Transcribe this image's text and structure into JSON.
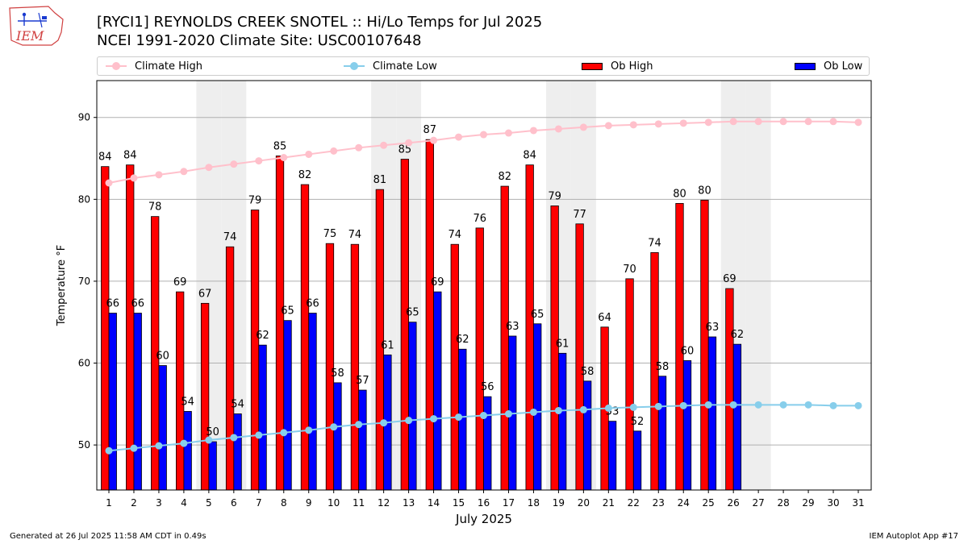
{
  "header": {
    "logo_text": "IEM",
    "title_line1": "[RYCI1] REYNOLDS CREEK SNOTEL :: Hi/Lo Temps for Jul 2025",
    "title_line2": "NCEI 1991-2020 Climate Site: USC00107648"
  },
  "legend": {
    "climate_high": "Climate High",
    "climate_low": "Climate Low",
    "ob_high": "Ob High",
    "ob_low": "Ob Low"
  },
  "colors": {
    "climate_high": "#ffc0cb",
    "climate_low": "#87ceeb",
    "ob_high": "#ff0000",
    "ob_low": "#0000ff",
    "weekend_shade": "#eeeeee",
    "grid": "#b0b0b0"
  },
  "chart_data": {
    "type": "bar",
    "title": "[RYCI1] REYNOLDS CREEK SNOTEL :: Hi/Lo Temps for Jul 2025",
    "subtitle": "NCEI 1991-2020 Climate Site: USC00107648",
    "xlabel": "July 2025",
    "ylabel": "Temperature °F",
    "ylim": [
      44.5,
      94.5
    ],
    "yticks": [
      50,
      60,
      70,
      80,
      90
    ],
    "grid": true,
    "legend_position": "top",
    "categories": [
      "1",
      "2",
      "3",
      "4",
      "5",
      "6",
      "7",
      "8",
      "9",
      "10",
      "11",
      "12",
      "13",
      "14",
      "15",
      "16",
      "17",
      "18",
      "19",
      "20",
      "21",
      "22",
      "23",
      "24",
      "25",
      "26",
      "27",
      "28",
      "29",
      "30",
      "31"
    ],
    "shaded_days": [
      5,
      6,
      12,
      13,
      19,
      20,
      26,
      27
    ],
    "series": [
      {
        "name": "Ob High",
        "kind": "bar",
        "values": [
          84,
          84,
          78,
          69,
          67,
          74,
          79,
          85,
          82,
          75,
          74,
          81,
          85,
          87,
          74,
          76,
          82,
          84,
          79,
          77,
          64,
          70,
          74,
          80,
          80,
          69,
          null,
          null,
          null,
          null,
          null
        ],
        "raw": [
          84.0,
          84.2,
          77.9,
          68.7,
          67.3,
          74.2,
          78.7,
          85.3,
          81.8,
          74.6,
          74.5,
          81.2,
          84.9,
          87.3,
          74.5,
          76.5,
          81.6,
          84.2,
          79.2,
          77.0,
          64.4,
          70.3,
          73.5,
          79.5,
          79.9,
          69.1,
          null,
          null,
          null,
          null,
          null
        ]
      },
      {
        "name": "Ob Low",
        "kind": "bar",
        "values": [
          66,
          66,
          60,
          54,
          50,
          54,
          62,
          65,
          66,
          58,
          57,
          61,
          65,
          69,
          62,
          56,
          63,
          65,
          61,
          58,
          53,
          52,
          58,
          60,
          63,
          62,
          null,
          null,
          null,
          null,
          null
        ],
        "raw": [
          66.1,
          66.1,
          59.7,
          54.1,
          50.4,
          53.8,
          62.2,
          65.2,
          66.1,
          57.6,
          56.7,
          61.0,
          65.0,
          68.7,
          61.7,
          55.9,
          63.3,
          64.8,
          61.2,
          57.8,
          52.9,
          51.7,
          58.4,
          60.3,
          63.2,
          62.3,
          null,
          null,
          null,
          null,
          null
        ]
      },
      {
        "name": "Climate High",
        "kind": "line",
        "values": [
          82.0,
          82.6,
          83.0,
          83.4,
          83.9,
          84.3,
          84.7,
          85.1,
          85.5,
          85.9,
          86.3,
          86.6,
          86.9,
          87.2,
          87.6,
          87.9,
          88.1,
          88.4,
          88.6,
          88.8,
          89.0,
          89.1,
          89.2,
          89.3,
          89.4,
          89.5,
          89.5,
          89.5,
          89.5,
          89.5,
          89.4
        ]
      },
      {
        "name": "Climate Low",
        "kind": "line",
        "values": [
          49.3,
          49.6,
          49.9,
          50.2,
          50.6,
          50.9,
          51.2,
          51.5,
          51.8,
          52.2,
          52.5,
          52.7,
          53.0,
          53.2,
          53.4,
          53.6,
          53.8,
          54.0,
          54.2,
          54.3,
          54.5,
          54.6,
          54.7,
          54.8,
          54.9,
          54.9,
          54.9,
          54.9,
          54.9,
          54.8,
          54.8
        ]
      }
    ]
  },
  "footer": {
    "generated": "Generated at 26 Jul 2025 11:58 AM CDT in 0.49s",
    "app": "IEM Autoplot App #17"
  }
}
